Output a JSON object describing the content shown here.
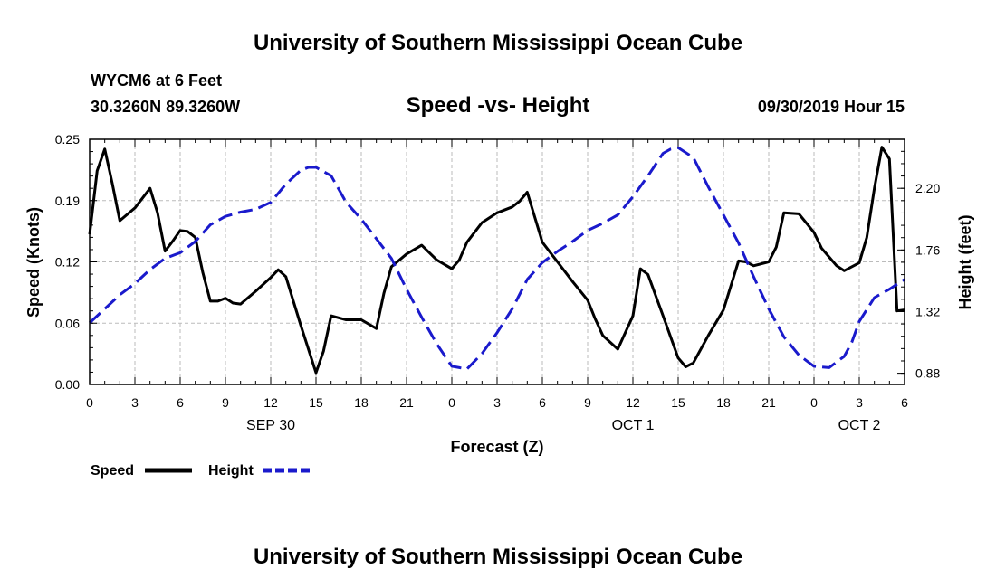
{
  "header": {
    "title": "University of Southern Mississippi Ocean Cube",
    "footer_title": "University of Southern Mississippi Ocean Cube",
    "station": "WYCM6 at 6 Feet",
    "location": "30.3260N 89.3260W",
    "chart_title": "Speed -vs- Height",
    "datetime": "09/30/2019 Hour 15"
  },
  "chart_data": {
    "type": "line",
    "title": "Speed -vs- Height",
    "xlabel": "Forecast (Z)",
    "ylabel": "Speed (Knots)",
    "y2label": "Height (feet)",
    "xlim": [
      0,
      54
    ],
    "ylim": [
      0,
      0.25
    ],
    "y2lim": [
      0.8,
      2.55
    ],
    "y_ticks": [
      "0.00",
      "0.06",
      "0.12",
      "0.19",
      "0.25"
    ],
    "y_tick_values": [
      0,
      0.0625,
      0.125,
      0.1875,
      0.25
    ],
    "y2_ticks": [
      "0.88",
      "1.32",
      "1.76",
      "2.20"
    ],
    "y2_tick_values": [
      0.88,
      1.32,
      1.76,
      2.2
    ],
    "x_tick_labels": [
      "0",
      "3",
      "6",
      "9",
      "12",
      "15",
      "18",
      "21",
      "0",
      "3",
      "6",
      "9",
      "12",
      "15",
      "18",
      "21",
      "0",
      "3",
      "6"
    ],
    "x_tick_hours": [
      0,
      3,
      6,
      9,
      12,
      15,
      18,
      21,
      24,
      27,
      30,
      33,
      36,
      39,
      42,
      45,
      48,
      51,
      54
    ],
    "day_labels": [
      {
        "label": "SEP 30",
        "hour": 12
      },
      {
        "label": "OCT 1",
        "hour": 36
      },
      {
        "label": "OCT 2",
        "hour": 51
      }
    ],
    "grid": true,
    "legend_position": "bottom-left",
    "series": [
      {
        "name": "Speed",
        "color": "#000000",
        "dash": "solid",
        "axis": "left",
        "x": [
          0,
          0.5,
          1,
          1.5,
          2,
          3,
          4,
          4.5,
          5,
          5.5,
          6,
          6.5,
          7,
          7.5,
          8,
          8.5,
          9,
          9.5,
          10,
          11,
          12,
          12.5,
          13,
          14,
          15,
          15.5,
          16,
          17,
          18,
          19,
          19.5,
          20,
          21,
          22,
          23,
          24,
          24.5,
          25,
          26,
          27,
          28,
          28.5,
          29,
          30,
          31,
          32,
          33,
          33.5,
          34,
          35,
          36,
          36.5,
          37,
          38,
          39,
          39.5,
          40,
          41,
          42,
          43,
          43.5,
          44,
          45,
          45.5,
          46,
          47,
          48,
          48.5,
          49,
          49.5,
          50,
          51,
          51.5,
          52,
          52.5,
          53,
          53.5,
          54
        ],
        "y": [
          0.153,
          0.218,
          0.24,
          0.205,
          0.167,
          0.18,
          0.2,
          0.175,
          0.136,
          0.146,
          0.157,
          0.156,
          0.15,
          0.114,
          0.085,
          0.085,
          0.088,
          0.083,
          0.082,
          0.095,
          0.109,
          0.117,
          0.11,
          0.06,
          0.012,
          0.034,
          0.07,
          0.066,
          0.066,
          0.057,
          0.093,
          0.12,
          0.133,
          0.142,
          0.127,
          0.118,
          0.127,
          0.145,
          0.165,
          0.175,
          0.181,
          0.187,
          0.196,
          0.145,
          0.125,
          0.105,
          0.086,
          0.067,
          0.05,
          0.036,
          0.07,
          0.118,
          0.112,
          0.07,
          0.027,
          0.018,
          0.022,
          0.05,
          0.076,
          0.126,
          0.125,
          0.121,
          0.125,
          0.14,
          0.175,
          0.174,
          0.155,
          0.139,
          0.13,
          0.121,
          0.116,
          0.124,
          0.15,
          0.2,
          0.242,
          0.23,
          0.075,
          0.076
        ]
      },
      {
        "name": "Height",
        "color": "#1a1acc",
        "dash": "dashed",
        "axis": "right",
        "x": [
          0,
          1,
          2,
          3,
          4,
          5,
          6,
          7,
          8,
          9,
          10,
          11,
          12,
          13,
          14,
          14.5,
          15,
          16,
          17,
          18,
          19,
          20,
          21,
          22,
          23,
          24,
          24.5,
          25,
          26,
          27,
          28,
          29,
          30,
          31,
          32,
          33,
          34,
          35,
          36,
          37,
          38,
          38.5,
          39,
          40,
          41,
          42,
          43,
          44,
          45,
          46,
          47,
          48,
          49,
          50,
          50.5,
          51,
          52,
          53,
          54
        ],
        "y": [
          1.24,
          1.34,
          1.44,
          1.52,
          1.62,
          1.7,
          1.74,
          1.82,
          1.94,
          2.0,
          2.03,
          2.05,
          2.1,
          2.23,
          2.33,
          2.35,
          2.35,
          2.29,
          2.1,
          1.98,
          1.84,
          1.7,
          1.48,
          1.28,
          1.09,
          0.93,
          0.92,
          0.91,
          1.02,
          1.17,
          1.34,
          1.55,
          1.67,
          1.75,
          1.82,
          1.9,
          1.95,
          2.01,
          2.14,
          2.29,
          2.45,
          2.48,
          2.49,
          2.42,
          2.21,
          2.01,
          1.81,
          1.57,
          1.34,
          1.14,
          1.01,
          0.93,
          0.92,
          1.0,
          1.1,
          1.25,
          1.42,
          1.48,
          1.55
        ]
      }
    ]
  }
}
